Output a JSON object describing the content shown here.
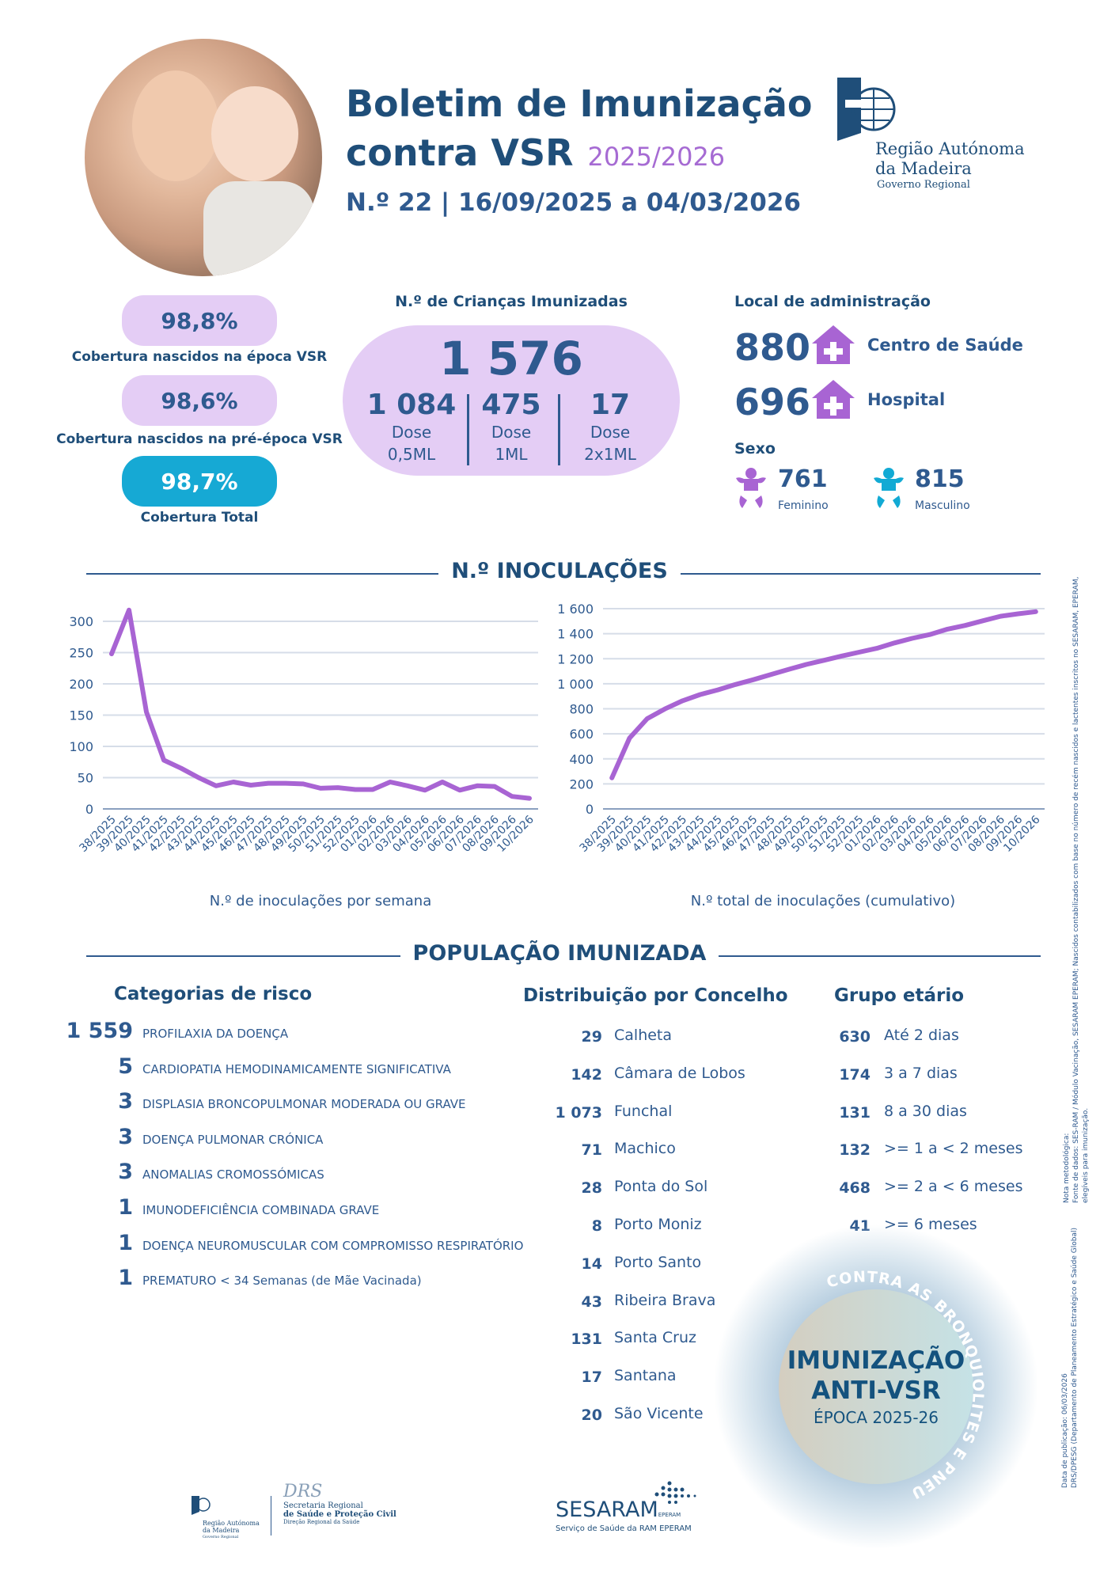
{
  "header": {
    "title_line1": "Boletim de Imunização",
    "title_line2": "contra VSR",
    "season": "2025/2026",
    "subtitle": "N.º 22 | 16/09/2025 a 04/03/2026",
    "logo": {
      "line1": "Região Autónoma",
      "line2": "da Madeira",
      "line3": "Governo Regional"
    }
  },
  "coverage": [
    {
      "value": "98,8%",
      "label": "Cobertura nascidos na época VSR"
    },
    {
      "value": "98,6%",
      "label": "Cobertura nascidos na pré-época VSR"
    },
    {
      "value": "98,7%",
      "label": "Cobertura Total"
    }
  ],
  "immunized": {
    "title": "N.º de Crianças Imunizadas",
    "total": "1 576",
    "doses": [
      {
        "value": "1 084",
        "line1": "Dose",
        "line2": "0,5ML"
      },
      {
        "value": "475",
        "line1": "Dose",
        "line2": "1ML"
      },
      {
        "value": "17",
        "line1": "Dose",
        "line2": "2x1ML"
      }
    ]
  },
  "admin": {
    "title": "Local de administração",
    "items": [
      {
        "value": "880",
        "label": "Centro de Saúde",
        "icon": "health-center-icon"
      },
      {
        "value": "696",
        "label": "Hospital",
        "icon": "hospital-icon"
      }
    ],
    "sex_title": "Sexo",
    "sex": [
      {
        "value": "761",
        "label": "Feminino",
        "color": "#a864d3"
      },
      {
        "value": "815",
        "label": "Masculino",
        "color": "#12aad4"
      }
    ]
  },
  "section1_title": "N.º INOCULAÇÕES",
  "chart_data": [
    {
      "type": "line",
      "title": "",
      "caption": "N.º de inoculações por semana",
      "categories": [
        "38/2025",
        "39/2025",
        "40/2025",
        "41/2025",
        "42/2025",
        "43/2025",
        "44/2025",
        "45/2025",
        "46/2025",
        "47/2025",
        "48/2025",
        "49/2025",
        "50/2025",
        "51/2025",
        "52/2025",
        "01/2026",
        "02/2026",
        "03/2026",
        "04/2026",
        "05/2026",
        "06/2026",
        "07/2026",
        "08/2026",
        "09/2026",
        "10/2026"
      ],
      "values": [
        248,
        318,
        155,
        78,
        65,
        50,
        37,
        43,
        38,
        41,
        41,
        40,
        33,
        34,
        31,
        31,
        43,
        37,
        30,
        43,
        30,
        37,
        36,
        20,
        17
      ],
      "ylim": [
        0,
        300
      ],
      "yticks": [
        "0",
        "50",
        "100",
        "150",
        "200",
        "250",
        "300"
      ],
      "ytick_values": [
        0,
        50,
        100,
        150,
        200,
        250,
        300
      ],
      "grid": true,
      "color": "#a864d3"
    },
    {
      "type": "line",
      "title": "",
      "caption": "N.º total de inoculações (cumulativo)",
      "categories": [
        "38/2025",
        "39/2025",
        "40/2025",
        "41/2025",
        "42/2025",
        "43/2025",
        "44/2025",
        "45/2025",
        "46/2025",
        "47/2025",
        "48/2025",
        "49/2025",
        "50/2025",
        "51/2025",
        "52/2025",
        "01/2026",
        "02/2026",
        "03/2026",
        "04/2026",
        "05/2026",
        "06/2026",
        "07/2026",
        "08/2026",
        "09/2026",
        "10/2026"
      ],
      "values": [
        248,
        566,
        721,
        799,
        864,
        914,
        951,
        994,
        1032,
        1073,
        1114,
        1154,
        1187,
        1221,
        1252,
        1283,
        1326,
        1363,
        1393,
        1436,
        1466,
        1503,
        1539,
        1559,
        1576
      ],
      "ylim": [
        0,
        1600
      ],
      "yticks": [
        "0",
        "200",
        "400",
        "600",
        "800",
        "1 000",
        "1 200",
        "1 400",
        "1 600"
      ],
      "ytick_values": [
        0,
        200,
        400,
        600,
        800,
        1000,
        1200,
        1400,
        1600
      ],
      "grid": true,
      "color": "#a864d3"
    }
  ],
  "section2_title": "POPULAÇÃO IMUNIZADA",
  "risk": {
    "title": "Categorias de risco",
    "items": [
      {
        "value": "1 559",
        "label": "PROFILAXIA DA DOENÇA"
      },
      {
        "value": "5",
        "label": "CARDIOPATIA HEMODINAMICAMENTE SIGNIFICATIVA"
      },
      {
        "value": "3",
        "label": "DISPLASIA BRONCOPULMONAR MODERADA OU GRAVE"
      },
      {
        "value": "3",
        "label": "DOENÇA PULMONAR CRÓNICA"
      },
      {
        "value": "3",
        "label": "ANOMALIAS CROMOSSÓMICAS"
      },
      {
        "value": "1",
        "label": "IMUNODEFICIÊNCIA COMBINADA GRAVE"
      },
      {
        "value": "1",
        "label": "DOENÇA NEUROMUSCULAR COM COMPROMISSO RESPIRATÓRIO"
      },
      {
        "value": "1",
        "label": "PREMATURO < 34 Semanas (de Mãe Vacinada)"
      }
    ]
  },
  "concelho": {
    "title": "Distribuição por Concelho",
    "items": [
      {
        "value": "29",
        "label": "Calheta"
      },
      {
        "value": "142",
        "label": "Câmara de Lobos"
      },
      {
        "value": "1 073",
        "label": "Funchal"
      },
      {
        "value": "71",
        "label": "Machico"
      },
      {
        "value": "28",
        "label": "Ponta do Sol"
      },
      {
        "value": "8",
        "label": "Porto Moniz"
      },
      {
        "value": "14",
        "label": "Porto Santo"
      },
      {
        "value": "43",
        "label": "Ribeira Brava"
      },
      {
        "value": "131",
        "label": "Santa Cruz"
      },
      {
        "value": "17",
        "label": "Santana"
      },
      {
        "value": "20",
        "label": "São Vicente"
      }
    ]
  },
  "age": {
    "title": "Grupo etário",
    "items": [
      {
        "value": "630",
        "label": "Até 2 dias"
      },
      {
        "value": "174",
        "label": "3 a 7 dias"
      },
      {
        "value": "131",
        "label": "8 a 30 dias"
      },
      {
        "value": "132",
        "label": ">= 1 a < 2 meses"
      },
      {
        "value": "468",
        "label": ">= 2 a < 6 meses"
      },
      {
        "value": "41",
        "label": ">= 6 meses"
      }
    ]
  },
  "badge": {
    "arc_text": "CONTRA AS BRONQUIOLITES E PNEUMONIAS",
    "line1": "IMUNIZAÇÃO",
    "line2": "ANTI-VSR",
    "line3": "ÉPOCA 2025-26"
  },
  "side_notes": {
    "note_title": "Nota metodológica:",
    "note_line1": "Fonte de dados: SES-RAM / Módulo Vacinação, SESARAM EPERAM; Nascidos contabilizados com base no número de recém nascidos e lactentes inscritos no SESARAM, EPERAM,",
    "note_line2": "elegíveis para imunização.",
    "pub_line1": "Data de publicação: 06/03/2026",
    "pub_line2": "DRS/DPESG (Departamento de Planeamento Estratégico e Saúde Global)"
  },
  "footer": {
    "ram_line1": "Região Autónoma",
    "ram_line2": "da Madeira",
    "ram_line3": "Governo Regional",
    "drs_acronym": "DRS",
    "drs_line1": "Secretaria Regional",
    "drs_line2": "de Saúde e Proteção Civil",
    "drs_line3": "Direção Regional da Saúde",
    "sesaram": "SESARAM",
    "sesaram_suffix": "EPERAM",
    "sesaram_sub": "Serviço de Saúde da RAM EPERAM"
  },
  "colors": {
    "primary": "#1f4e79",
    "text": "#2f5a8f",
    "purple": "#a864d3",
    "lavender": "#e4cdf5",
    "cyan": "#16a9d4"
  }
}
